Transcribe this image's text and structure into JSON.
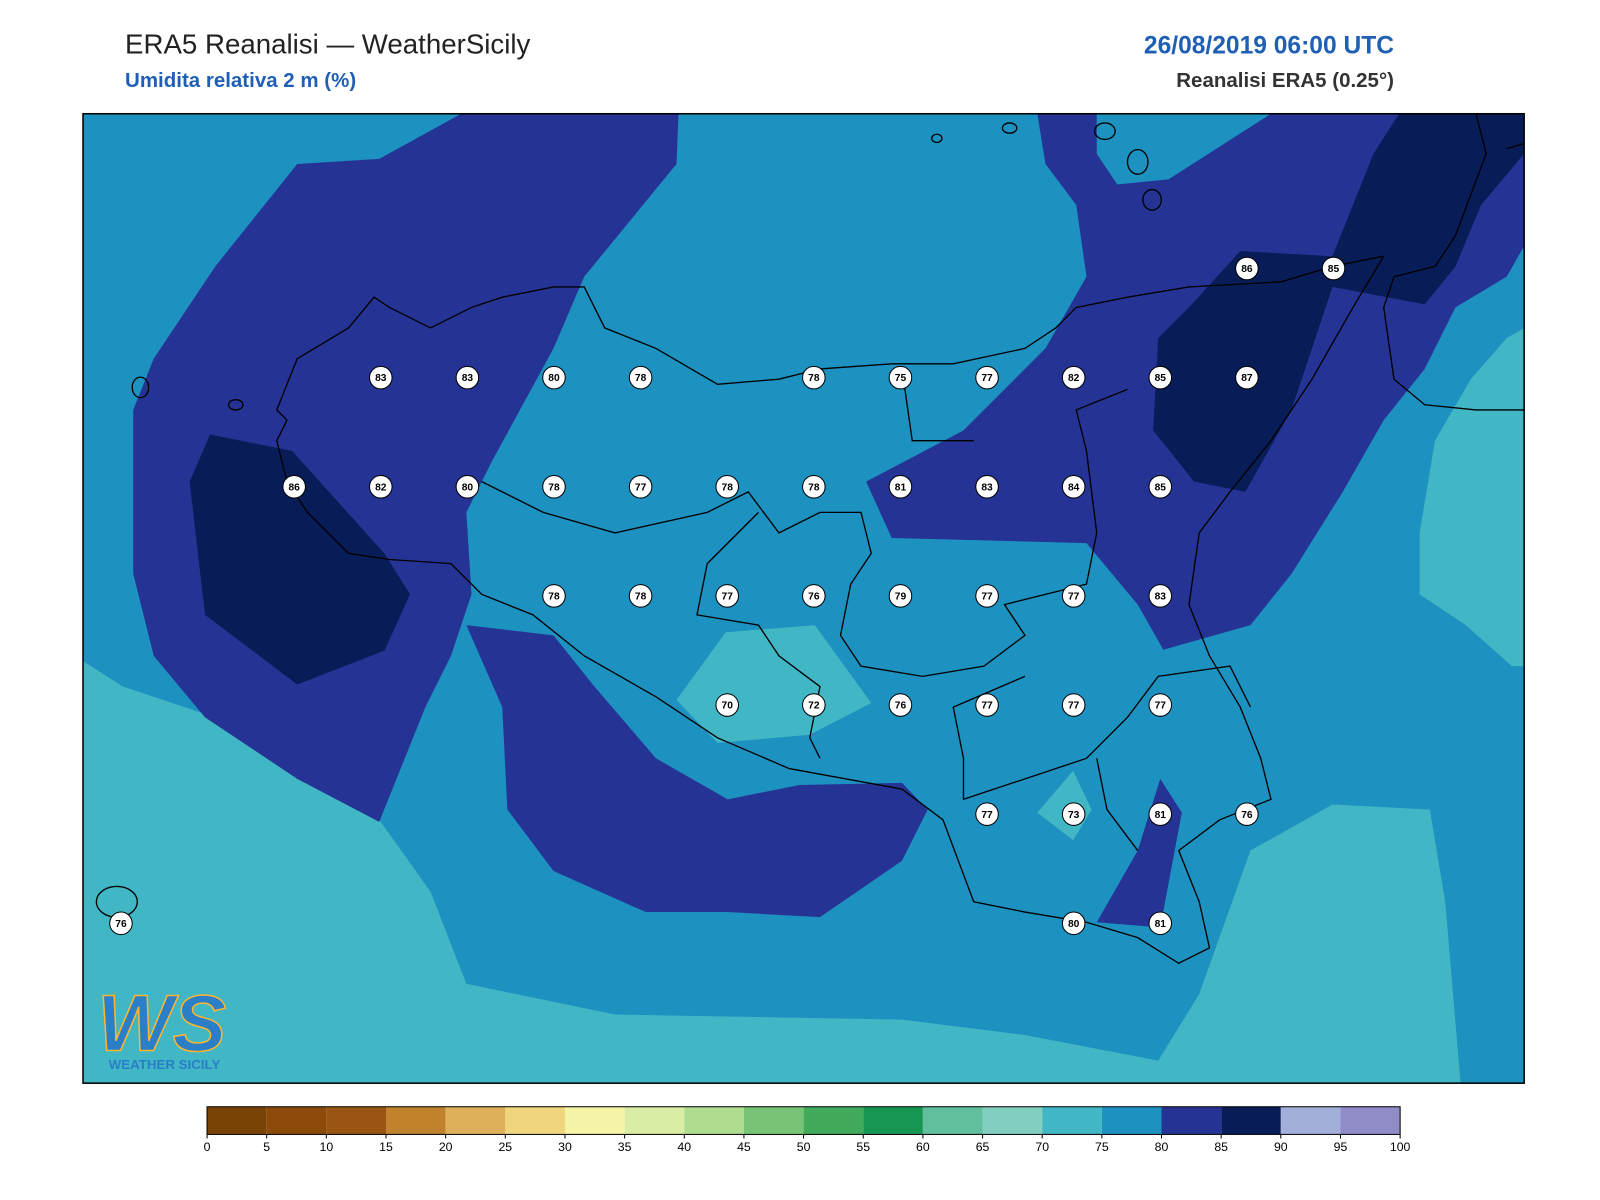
{
  "header": {
    "title": "ERA5 Reanalisi — WeatherSicily",
    "subtitle": "Umidita relativa 2 m (%)",
    "date": "26/08/2019 06:00 UTC",
    "source": "Reanalisi ERA5 (0.25°)"
  },
  "stations": {
    "values": [
      86,
      85,
      83,
      83,
      80,
      78,
      78,
      75,
      77,
      82,
      85,
      87,
      86,
      82,
      80,
      78,
      77,
      78,
      78,
      81,
      83,
      84,
      85,
      78,
      78,
      77,
      76,
      79,
      77,
      77,
      83,
      70,
      72,
      76,
      77,
      77,
      77,
      77,
      73,
      81,
      76,
      76,
      80,
      81
    ]
  },
  "colorbar": {
    "ticks": [
      0,
      5,
      10,
      15,
      20,
      25,
      30,
      35,
      40,
      45,
      50,
      55,
      60,
      65,
      70,
      75,
      80,
      85,
      90,
      95,
      100
    ],
    "colors": [
      "#7a4306",
      "#8c4a0b",
      "#9a5413",
      "#c0822c",
      "#dfb05a",
      "#f0d57e",
      "#f5f4a6",
      "#d9eda5",
      "#aedd90",
      "#78c477",
      "#41aa5b",
      "#179652",
      "#62bf9d",
      "#82cfbf",
      "#41b6c4",
      "#1d91c0",
      "#253494",
      "#081d58",
      "#a3aedb",
      "#8f8cc7"
    ]
  },
  "logo": {
    "mark": "WS",
    "text": "WEATHER SICILY"
  }
}
